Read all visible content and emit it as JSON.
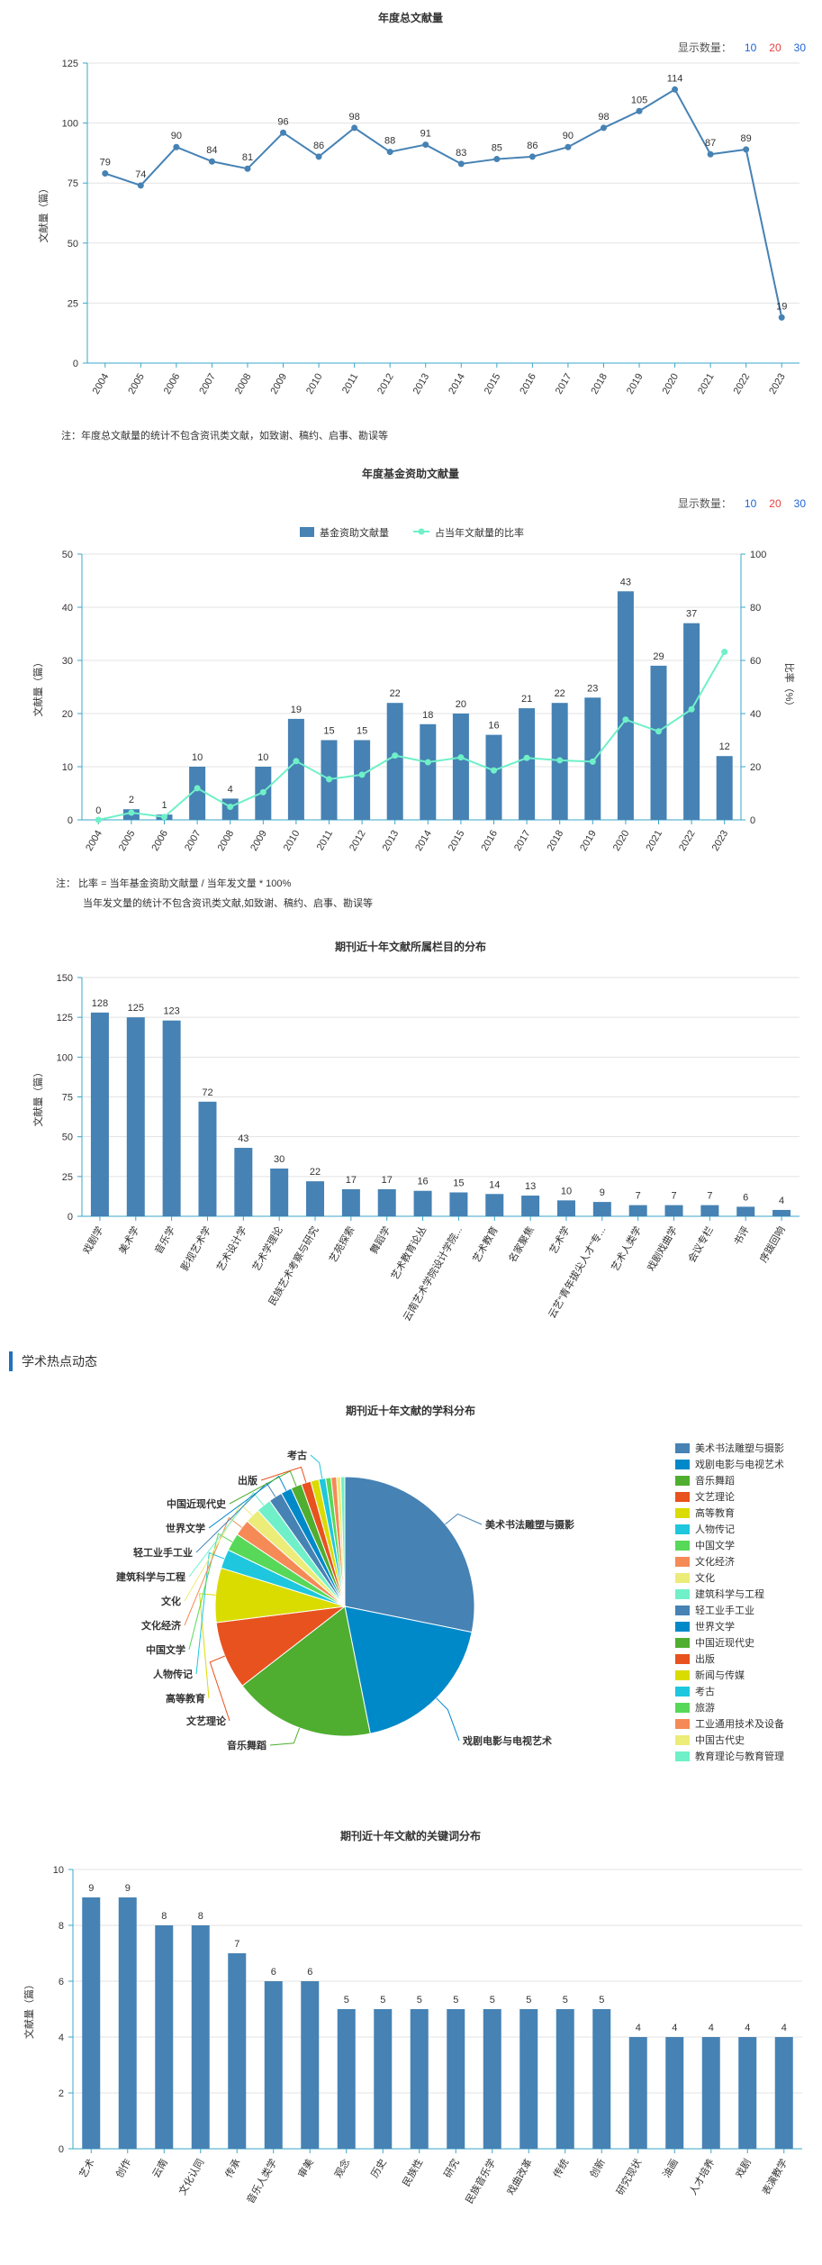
{
  "charts": {
    "annual": {
      "title": "年度总文献量",
      "note": "注：年度总文献量的统计不包含资讯类文献，如致谢、稿约、启事、勘误等"
    },
    "fund": {
      "title": "年度基金资助文献量",
      "note1": "注： 比率 = 当年基金资助文献量 / 当年发文量 * 100%",
      "note2": "当年发文量的统计不包含资讯类文献,如致谢、稿约、启事、勘误等"
    },
    "column": {
      "title": "期刊近十年文献所属栏目的分布"
    },
    "subject": {
      "title": "期刊近十年文献的学科分布"
    },
    "keyword": {
      "title": "期刊近十年文献的关键词分布"
    }
  },
  "show_count": {
    "label": "显示数量：",
    "options": [
      "10",
      "20",
      "30"
    ],
    "colors": [
      "#1e63d6",
      "#e8403a",
      "#1e63d6"
    ]
  },
  "section": {
    "title": "学术热点动态"
  },
  "colors": {
    "bar": "#4682b4",
    "line": "#4682b4",
    "ratio": "#6ff0c8",
    "axis": "#3aa7c9",
    "grid": "#e3e3e3"
  },
  "chart_data": [
    {
      "type": "line",
      "title": "年度总文献量",
      "ylabel": "文献量（篇）",
      "x": [
        "2004",
        "2005",
        "2006",
        "2007",
        "2008",
        "2009",
        "2010",
        "2011",
        "2012",
        "2013",
        "2014",
        "2015",
        "2016",
        "2017",
        "2018",
        "2019",
        "2020",
        "2021",
        "2022",
        "2023"
      ],
      "values": [
        79,
        74,
        90,
        84,
        81,
        96,
        86,
        98,
        88,
        91,
        83,
        85,
        86,
        90,
        98,
        105,
        114,
        87,
        89,
        19
      ],
      "ylim": [
        0,
        125
      ],
      "yticks": [
        0,
        25,
        50,
        75,
        100,
        125
      ],
      "grid": true
    },
    {
      "type": "bar",
      "title": "年度基金资助文献量",
      "ylabel": "文献量（篇）",
      "y2label": "比率（%）",
      "x": [
        "2004",
        "2005",
        "2006",
        "2007",
        "2008",
        "2009",
        "2010",
        "2011",
        "2012",
        "2013",
        "2014",
        "2015",
        "2016",
        "2017",
        "2018",
        "2019",
        "2020",
        "2021",
        "2022",
        "2023"
      ],
      "series": [
        {
          "name": "基金资助文献量",
          "type": "bar",
          "values": [
            0,
            2,
            1,
            10,
            4,
            10,
            19,
            15,
            15,
            22,
            18,
            20,
            16,
            21,
            22,
            23,
            43,
            29,
            37,
            12
          ]
        },
        {
          "name": "占当年文献量的比率",
          "type": "line",
          "axis": "right",
          "values": [
            0,
            2.7,
            1.1,
            11.9,
            4.9,
            10.4,
            22.1,
            15.3,
            17.0,
            24.2,
            21.7,
            23.5,
            18.6,
            23.3,
            22.4,
            21.9,
            37.7,
            33.3,
            41.6,
            63.2
          ]
        }
      ],
      "ylim": [
        0,
        50
      ],
      "yticks": [
        0,
        10,
        20,
        30,
        40,
        50
      ],
      "y2lim": [
        0,
        100
      ],
      "y2ticks": [
        0,
        20,
        40,
        60,
        80,
        100
      ],
      "legend": "top-center",
      "grid": true
    },
    {
      "type": "bar",
      "title": "期刊近十年文献所属栏目的分布",
      "ylabel": "文献量（篇）",
      "categories": [
        "戏剧学",
        "美术学",
        "音乐学",
        "影视艺术学",
        "艺术设计学",
        "艺术学理论",
        "民族艺术考察与研究",
        "艺苑探索",
        "舞蹈学",
        "艺术教育论丛",
        "云南艺术学院设计学院...",
        "艺术教育",
        "名家聚焦",
        "艺术学",
        "云艺“青年拔尖人才”专...",
        "艺术人类学",
        "戏剧戏曲学",
        "会议专栏",
        "书评",
        "序跋回响"
      ],
      "values": [
        128,
        125,
        123,
        72,
        43,
        30,
        22,
        17,
        17,
        16,
        15,
        14,
        13,
        10,
        9,
        7,
        7,
        7,
        6,
        4
      ],
      "ylim": [
        0,
        150
      ],
      "yticks": [
        0,
        25,
        50,
        75,
        100,
        125,
        150
      ],
      "grid": true
    },
    {
      "type": "pie",
      "title": "期刊近十年文献的学科分布",
      "labels": [
        "美术书法雕塑与摄影",
        "戏剧电影与电视艺术",
        "音乐舞蹈",
        "文艺理论",
        "高等教育",
        "人物传记",
        "中国文学",
        "文化经济",
        "文化",
        "建筑科学与工程",
        "轻工业手工业",
        "世界文学",
        "中国近现代史",
        "出版",
        "新闻与传媒",
        "考古",
        "旅游",
        "工业通用技术及设备",
        "中国古代史",
        "教育理论与教育管理"
      ],
      "values": [
        166,
        110,
        104,
        50,
        40,
        14,
        13,
        12,
        11,
        11,
        10,
        8,
        8,
        7,
        6,
        5,
        4,
        4,
        3,
        3
      ],
      "colors": [
        "#4682b4",
        "#0089c9",
        "#4fae30",
        "#e8521e",
        "#dadc00",
        "#1ec7dd",
        "#58d858",
        "#f58a56",
        "#ecec78",
        "#6ff0c8",
        "#4682b4",
        "#0089c9",
        "#4fae30",
        "#e8521e",
        "#dadc00",
        "#1ec7dd",
        "#58d858",
        "#f58a56",
        "#ecec78",
        "#6ff0c8"
      ],
      "callouts": [
        "美术书法雕塑与摄影",
        "戏剧电影与电视艺术",
        "音乐舞蹈",
        "文艺理论",
        "高等教育",
        "人物传记",
        "中国文学",
        "文化经济",
        "文化",
        "建筑科学与工程",
        "轻工业手工业",
        "世界文学",
        "中国近现代史",
        "出版",
        "考古"
      ],
      "legend": "right"
    },
    {
      "type": "bar",
      "title": "期刊近十年文献的关键词分布",
      "ylabel": "文献量（篇）",
      "categories": [
        "艺术",
        "创作",
        "云南",
        "文化认同",
        "传承",
        "音乐人类学",
        "审美",
        "观念",
        "历史",
        "民族性",
        "研究",
        "民族音乐学",
        "戏曲改革",
        "传统",
        "创新",
        "研究现状",
        "油画",
        "人才培养",
        "戏剧",
        "表演教学"
      ],
      "values": [
        9,
        9,
        8,
        8,
        7,
        6,
        6,
        5,
        5,
        5,
        5,
        5,
        5,
        5,
        5,
        4,
        4,
        4,
        4,
        4
      ],
      "ylim": [
        0,
        10
      ],
      "yticks": [
        0,
        2,
        4,
        6,
        8,
        10
      ],
      "grid": true
    }
  ]
}
